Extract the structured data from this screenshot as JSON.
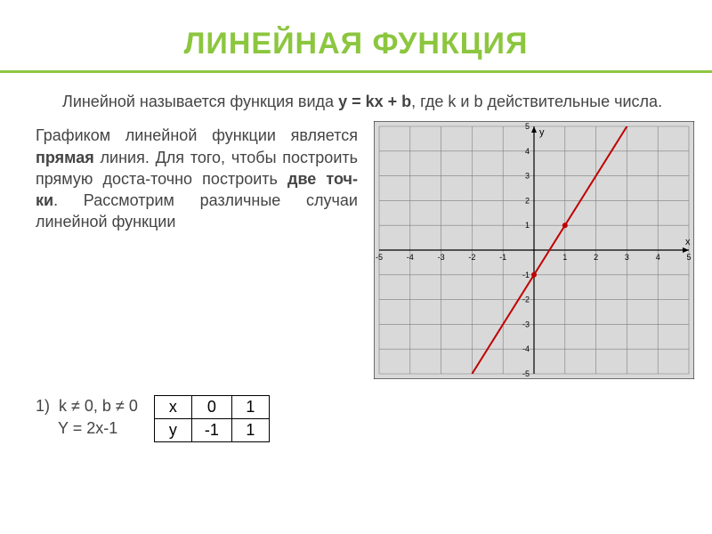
{
  "title": {
    "text": "ЛИНЕЙНАЯ ФУНКЦИЯ",
    "color": "#8cc63f",
    "underline_color": "#8cc63f"
  },
  "intro": {
    "prefix": "Линейной называется функция вида ",
    "formula": "y = kx + b",
    "suffix": ", где k и b действительные числа."
  },
  "description": {
    "part1": "Графиком линейной функции является ",
    "bold1": "прямая",
    "part2": " линия. Для того, чтобы построить прямую доста-точно построить ",
    "bold2": "две точ-ки",
    "part3": ". Рассмотрим различные случаи линейной функции"
  },
  "case1": {
    "index": "1)",
    "condition": "k ≠ 0, b ≠ 0",
    "equation": "Y = 2x-1"
  },
  "table": {
    "header_x": "x",
    "header_y": "y",
    "cols": [
      "0",
      "1"
    ],
    "row_y": [
      "-1",
      "1"
    ]
  },
  "chart": {
    "type": "line",
    "background_color": "#d9d9d9",
    "grid_color": "#7f7f7f",
    "axis_color": "#000000",
    "line_color": "#c00000",
    "line_width": 2,
    "point_color": "#c00000",
    "xlim": [
      -5,
      5
    ],
    "ylim": [
      -5,
      5
    ],
    "xtick_step": 1,
    "ytick_step": 1,
    "tick_font_size": 9,
    "axis_labels": {
      "x": "x",
      "y": "y"
    },
    "points": [
      {
        "x": 0,
        "y": -1
      },
      {
        "x": 1,
        "y": 1
      }
    ],
    "line_segment": {
      "x1": -2,
      "y1": -5,
      "x2": 4.5,
      "y2": 8
    }
  }
}
